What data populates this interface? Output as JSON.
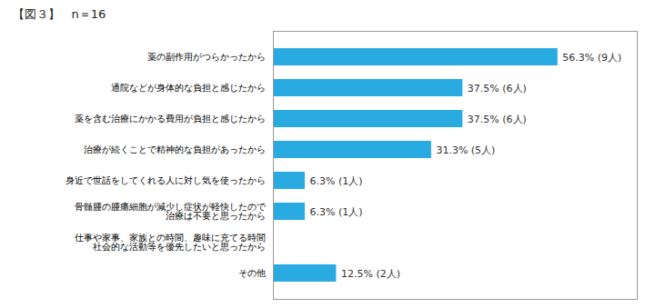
{
  "chart_data": {
    "type": "bar",
    "orientation": "horizontal",
    "title": "【図３】   n＝16",
    "categories": [
      "薬の副作用がつらかったから",
      "通院などが身体的な負担と感じたから",
      "薬を含む治療にかかる費用が負担と感じたから",
      "治療が続くことで精神的な負担があったから",
      "身近で世話をしてくれる人に対し気を使ったから",
      "骨髄腫の腫瘍細胞が減少し症状が軽快したので\n治療は不要と思ったから",
      "仕事や家事、家族との時間、趣味に充てる時間\n社会的な活動等を優先したいと思ったから",
      "その他"
    ],
    "values": [
      56.3,
      37.5,
      37.5,
      31.3,
      6.3,
      6.3,
      0.0,
      12.5
    ],
    "value_labels": [
      "56.3% (9人)",
      "37.5% (6人)",
      "37.5% (6人)",
      "31.3% (5人)",
      "6.3% (1人)",
      "6.3% (1人)",
      null,
      "12.5% (2人)"
    ],
    "color": "#29ABE2",
    "xlim": [
      0,
      72
    ],
    "data_labels": true,
    "tick_labels": "y",
    "grid": false
  }
}
